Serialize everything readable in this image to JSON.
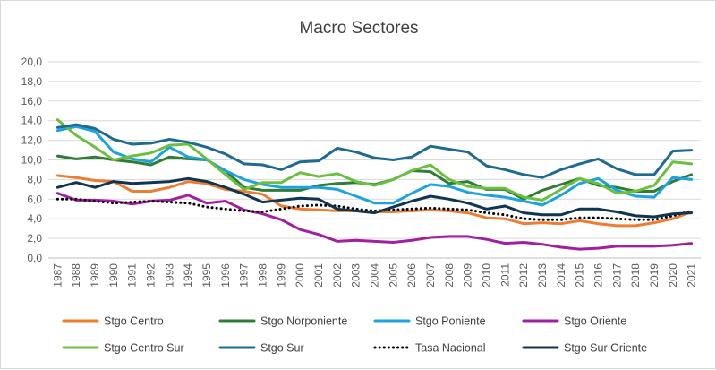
{
  "chart_data": {
    "type": "line",
    "title": "Macro Sectores",
    "xlabel": "",
    "ylabel": "",
    "ylim": [
      0,
      20
    ],
    "yticks": [
      "0,0",
      "2,0",
      "4,0",
      "6,0",
      "8,0",
      "10,0",
      "12,0",
      "14,0",
      "16,0",
      "18,0",
      "20,0"
    ],
    "grid": true,
    "legend_position": "bottom",
    "x": [
      "1987",
      "1988",
      "1989",
      "1990",
      "1991",
      "1992",
      "1993",
      "1994",
      "1995",
      "1996",
      "1997",
      "1998",
      "1999",
      "2000",
      "2001",
      "2002",
      "2003",
      "2004",
      "2005",
      "2006",
      "2007",
      "2008",
      "2009",
      "2010",
      "2011",
      "2012",
      "2013",
      "2014",
      "2015",
      "2016",
      "2017",
      "2018",
      "2019",
      "2020",
      "2021"
    ],
    "series": [
      {
        "name": "Stgo Centro",
        "color": "#ED7D31",
        "style": "solid",
        "values": [
          8.4,
          8.2,
          7.9,
          7.8,
          6.8,
          6.8,
          7.2,
          7.8,
          7.6,
          7.0,
          6.8,
          6.5,
          5.3,
          5.0,
          4.9,
          4.8,
          4.8,
          4.7,
          4.7,
          4.8,
          4.9,
          4.8,
          4.6,
          4.1,
          4.0,
          3.5,
          3.6,
          3.5,
          3.8,
          3.5,
          3.3,
          3.3,
          3.6,
          4.0,
          4.7
        ]
      },
      {
        "name": "Stgo Norponiente",
        "color": "#2E7D32",
        "style": "solid",
        "values": [
          10.4,
          10.1,
          10.3,
          10.0,
          9.8,
          9.5,
          10.3,
          10.1,
          10.0,
          8.9,
          7.2,
          6.9,
          6.9,
          6.9,
          7.4,
          7.6,
          7.7,
          7.5,
          8.0,
          8.9,
          8.8,
          7.6,
          7.8,
          7.0,
          7.0,
          6.0,
          6.9,
          7.5,
          8.1,
          7.4,
          7.2,
          6.8,
          6.8,
          7.8,
          8.5
        ]
      },
      {
        "name": "Stgo Poniente",
        "color": "#1CA3DE",
        "style": "solid",
        "values": [
          13.0,
          13.4,
          12.9,
          10.8,
          10.1,
          9.8,
          11.3,
          10.3,
          10.0,
          8.9,
          8.0,
          7.5,
          7.2,
          7.2,
          7.2,
          7.0,
          6.3,
          5.6,
          5.6,
          6.6,
          7.5,
          7.3,
          6.7,
          6.4,
          6.2,
          5.8,
          5.4,
          6.4,
          7.6,
          8.1,
          6.9,
          6.3,
          6.2,
          8.2,
          8.0
        ]
      },
      {
        "name": "Stgo Oriente",
        "color": "#A020A0",
        "style": "solid",
        "values": [
          6.6,
          5.9,
          5.9,
          5.8,
          5.5,
          5.8,
          5.9,
          6.4,
          5.6,
          5.8,
          4.9,
          4.5,
          3.9,
          2.9,
          2.4,
          1.7,
          1.8,
          1.7,
          1.6,
          1.8,
          2.1,
          2.2,
          2.2,
          1.9,
          1.5,
          1.6,
          1.4,
          1.1,
          0.9,
          1.0,
          1.2,
          1.2,
          1.2,
          1.3,
          1.5
        ]
      },
      {
        "name": "Stgo Centro Sur",
        "color": "#6ABF3F",
        "style": "solid",
        "values": [
          14.1,
          12.5,
          11.3,
          10.0,
          10.4,
          10.7,
          11.5,
          11.6,
          10.1,
          8.5,
          7.0,
          7.7,
          7.7,
          8.7,
          8.3,
          8.6,
          7.8,
          7.4,
          8.0,
          8.9,
          9.5,
          8.0,
          7.3,
          7.1,
          7.1,
          6.2,
          5.9,
          7.0,
          8.1,
          7.6,
          6.6,
          6.8,
          7.4,
          9.8,
          9.6
        ]
      },
      {
        "name": "Stgo Sur",
        "color": "#1F6A91",
        "style": "solid",
        "values": [
          13.3,
          13.6,
          13.2,
          12.1,
          11.6,
          11.7,
          12.1,
          11.8,
          11.3,
          10.6,
          9.6,
          9.5,
          9.0,
          9.8,
          9.9,
          11.2,
          10.8,
          10.2,
          10.0,
          10.3,
          11.4,
          11.1,
          10.8,
          9.4,
          9.0,
          8.5,
          8.2,
          9.0,
          9.6,
          10.1,
          9.1,
          8.5,
          8.5,
          10.9,
          11.0
        ]
      },
      {
        "name": "Tasa Nacional",
        "color": "#000000",
        "style": "dotted",
        "values": [
          6.0,
          6.0,
          5.8,
          5.6,
          5.7,
          5.8,
          5.7,
          5.6,
          5.2,
          5.0,
          4.8,
          4.7,
          5.0,
          5.3,
          5.4,
          5.3,
          5.0,
          4.8,
          4.9,
          5.0,
          5.1,
          5.0,
          4.9,
          4.6,
          4.4,
          4.0,
          3.9,
          3.9,
          4.1,
          4.1,
          4.0,
          3.9,
          3.9,
          4.3,
          4.8
        ]
      },
      {
        "name": "Stgo Sur Oriente",
        "color": "#0F3550",
        "style": "solid",
        "values": [
          7.2,
          7.7,
          7.2,
          7.8,
          7.6,
          7.7,
          7.8,
          8.1,
          7.8,
          7.2,
          6.5,
          5.7,
          5.9,
          6.1,
          6.0,
          5.0,
          4.8,
          4.6,
          5.2,
          5.8,
          6.3,
          6.0,
          5.6,
          5.0,
          5.3,
          4.6,
          4.4,
          4.4,
          5.0,
          5.0,
          4.7,
          4.3,
          4.2,
          4.5,
          4.6
        ]
      }
    ]
  }
}
